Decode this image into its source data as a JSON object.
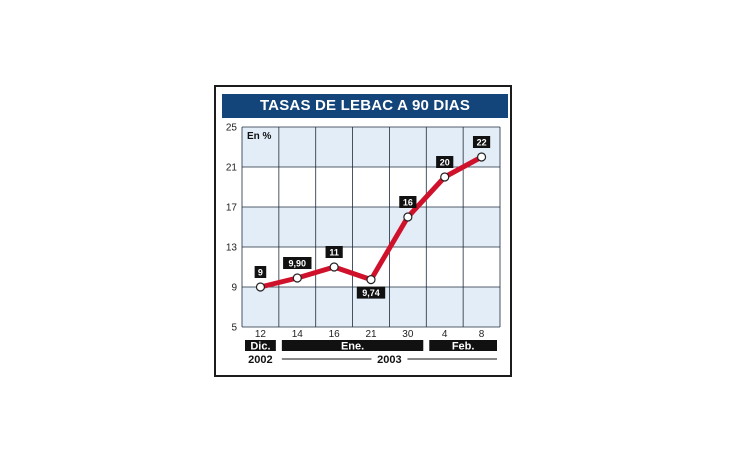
{
  "chart_data": {
    "type": "line",
    "title": "TASAS DE LEBAC A 90 DIAS",
    "unit_label": "En %",
    "x": [
      "12",
      "14",
      "16",
      "21",
      "30",
      "4",
      "8"
    ],
    "values": [
      9,
      9.9,
      11,
      9.74,
      16,
      20,
      22
    ],
    "value_labels": [
      "9",
      "9,90",
      "11",
      "9,74",
      "16",
      "20",
      "22"
    ],
    "yticks": [
      5,
      9,
      13,
      17,
      21,
      25
    ],
    "ylim": [
      5,
      25
    ],
    "months": [
      {
        "label": "Dic.",
        "from": 0,
        "to": 0
      },
      {
        "label": "Ene.",
        "from": 1,
        "to": 4
      },
      {
        "label": "Feb.",
        "from": 5,
        "to": 6
      }
    ],
    "years": [
      {
        "label": "2002",
        "from": 0,
        "to": 0
      },
      {
        "label": "2003",
        "from": 1,
        "to": 6
      }
    ],
    "grid": true,
    "colors": {
      "line": "#d0112b",
      "band_light": "#e3edf7",
      "band_white": "#ffffff",
      "grid": "#1e2b3a",
      "title_bg": "#14457a",
      "label_bg": "#111111",
      "point_fill": "#ffffff"
    }
  }
}
